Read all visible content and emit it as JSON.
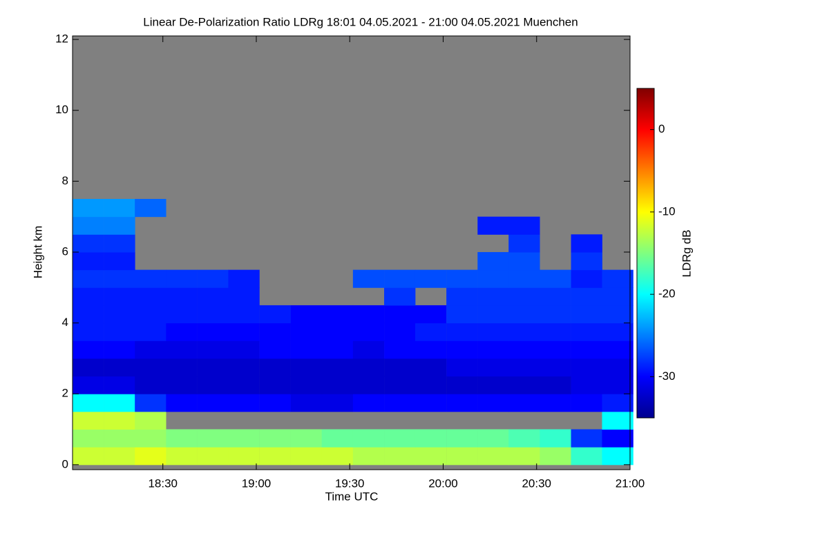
{
  "chart_data": {
    "type": "heatmap",
    "title": "Linear De-Polarization Ratio LDRg   18:01 04.05.2021 - 21:00 04.05.2021 Muenchen",
    "x_label": "Time UTC",
    "y_label": "Height km",
    "colorbar_label": "LDRg dB",
    "colormap": "jet",
    "background": "#808080",
    "x": [
      18.1,
      18.267,
      18.433,
      18.6,
      18.767,
      18.933,
      19.1,
      19.267,
      19.433,
      19.6,
      19.767,
      19.933,
      20.1,
      20.267,
      20.433,
      20.6,
      20.767,
      20.933
    ],
    "y": [
      0.25,
      0.75,
      1.25,
      1.75,
      2.25,
      2.75,
      3.25,
      3.75,
      4.25,
      4.75,
      5.25,
      5.75,
      6.25,
      6.75,
      7.25
    ],
    "z": [
      [
        -12,
        -12,
        -11,
        -12,
        -12,
        -12,
        -12,
        -12,
        -12,
        -13,
        -13,
        -13,
        -13,
        -13,
        -13,
        -14,
        -18,
        -20
      ],
      [
        -14,
        -14,
        -14,
        -15,
        -15,
        -15,
        -15,
        -15,
        -16,
        -16,
        -16,
        -16,
        -16,
        -16,
        -17,
        -18,
        -28,
        -30
      ],
      [
        -12,
        -12,
        -13,
        null,
        null,
        null,
        null,
        null,
        null,
        null,
        null,
        null,
        null,
        null,
        null,
        null,
        null,
        -20
      ],
      [
        -20,
        -20,
        -28,
        -30,
        -30,
        -30,
        -30,
        -31,
        -31,
        -30,
        -30,
        -30,
        -30,
        -30,
        -30,
        -30,
        -30,
        -29
      ],
      [
        -31,
        -31,
        -32,
        -32,
        -32,
        -32,
        -32,
        -32,
        -32,
        -32,
        -32,
        -32,
        -32,
        -32,
        -32,
        -32,
        -31,
        -31
      ],
      [
        -32,
        -32,
        -32,
        -32,
        -32,
        -32,
        -32,
        -32,
        -32,
        -32,
        -32,
        -32,
        -31,
        -31,
        -31,
        -31,
        -31,
        -31
      ],
      [
        -30,
        -30,
        -31,
        -31,
        -31,
        -31,
        -30,
        -30,
        -30,
        -31,
        -30,
        -30,
        -30,
        -30,
        -30,
        -30,
        -30,
        -30
      ],
      [
        -29,
        -29,
        -29,
        -30,
        -30,
        -30,
        -30,
        -30,
        -30,
        -30,
        -30,
        -29,
        -29,
        -29,
        -29,
        -29,
        -29,
        -29
      ],
      [
        -29,
        -29,
        -29,
        -29,
        -29,
        -29,
        -29,
        -30,
        -30,
        -30,
        -30,
        -30,
        -28,
        -28,
        -28,
        -28,
        -28,
        -28
      ],
      [
        -29,
        -29,
        -29,
        -29,
        -29,
        -29,
        null,
        null,
        null,
        null,
        -28,
        null,
        -28,
        -28,
        -28,
        -28,
        -28,
        -28
      ],
      [
        -28,
        -28,
        -28,
        -28,
        -28,
        -29,
        null,
        null,
        null,
        -27,
        -27,
        -27,
        -27,
        -27,
        -27,
        -27,
        -29,
        -28
      ],
      [
        -29,
        -29,
        null,
        null,
        null,
        null,
        null,
        null,
        null,
        null,
        null,
        null,
        null,
        -27,
        -27,
        null,
        -28,
        null
      ],
      [
        -28,
        -28,
        null,
        null,
        null,
        null,
        null,
        null,
        null,
        null,
        null,
        null,
        null,
        null,
        -28,
        null,
        -29,
        null
      ],
      [
        -25,
        -25,
        null,
        null,
        null,
        null,
        null,
        null,
        null,
        null,
        null,
        null,
        null,
        -29,
        -29,
        null,
        null,
        null
      ],
      [
        -24,
        -24,
        -26,
        null,
        null,
        null,
        null,
        null,
        null,
        null,
        null,
        null,
        null,
        null,
        null,
        null,
        null,
        null
      ]
    ],
    "xlim": [
      18.0167,
      21.0
    ],
    "ylim": [
      -0.14,
      12.1
    ],
    "zlim": [
      -35,
      5
    ],
    "xticks": [
      {
        "value": 18.5,
        "label": "18:30"
      },
      {
        "value": 19.0,
        "label": "19:00"
      },
      {
        "value": 19.5,
        "label": "19:30"
      },
      {
        "value": 20.0,
        "label": "20:00"
      },
      {
        "value": 20.5,
        "label": "20:30"
      },
      {
        "value": 21.0,
        "label": "21:00"
      }
    ],
    "yticks": [
      0,
      2,
      4,
      6,
      8,
      10,
      12
    ],
    "zticks": [
      0,
      -10,
      -20,
      -30
    ]
  }
}
